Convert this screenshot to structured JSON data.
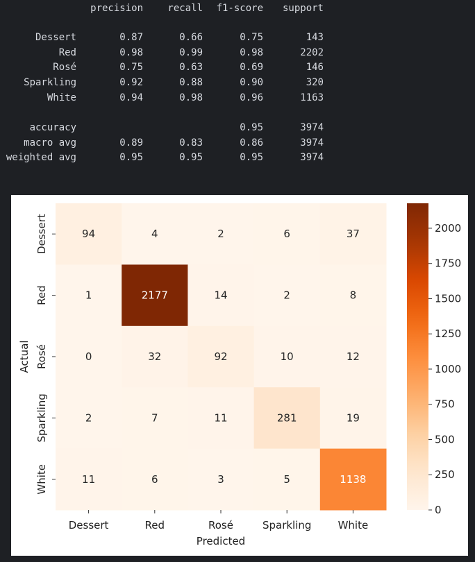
{
  "report": {
    "headers": [
      "precision",
      "recall",
      "f1-score",
      "support"
    ],
    "rows": [
      {
        "label": "Dessert",
        "precision": "0.87",
        "recall": "0.66",
        "f1": "0.75",
        "support": "143"
      },
      {
        "label": "Red",
        "precision": "0.98",
        "recall": "0.99",
        "f1": "0.98",
        "support": "2202"
      },
      {
        "label": "Rosé",
        "precision": "0.75",
        "recall": "0.63",
        "f1": "0.69",
        "support": "146"
      },
      {
        "label": "Sparkling",
        "precision": "0.92",
        "recall": "0.88",
        "f1": "0.90",
        "support": "320"
      },
      {
        "label": "White",
        "precision": "0.94",
        "recall": "0.98",
        "f1": "0.96",
        "support": "1163"
      }
    ],
    "summary": [
      {
        "label": "accuracy",
        "precision": "",
        "recall": "",
        "f1": "0.95",
        "support": "3974"
      },
      {
        "label": "macro avg",
        "precision": "0.89",
        "recall": "0.83",
        "f1": "0.86",
        "support": "3974"
      },
      {
        "label": "weighted avg",
        "precision": "0.95",
        "recall": "0.95",
        "f1": "0.95",
        "support": "3974"
      }
    ]
  },
  "chart_data": {
    "type": "heatmap",
    "x_categories": [
      "Dessert",
      "Red",
      "Rosé",
      "Sparkling",
      "White"
    ],
    "y_categories": [
      "Dessert",
      "Red",
      "Rosé",
      "Sparkling",
      "White"
    ],
    "values": [
      [
        94,
        4,
        2,
        6,
        37
      ],
      [
        1,
        2177,
        14,
        2,
        8
      ],
      [
        0,
        32,
        92,
        10,
        12
      ],
      [
        2,
        7,
        11,
        281,
        19
      ],
      [
        11,
        6,
        3,
        5,
        1138
      ]
    ],
    "xlabel": "Predicted",
    "ylabel": "Actual",
    "colormap": "Oranges",
    "vmin": 0,
    "vmax": 2177,
    "colorbar_ticks": [
      0,
      250,
      500,
      750,
      1000,
      1250,
      1500,
      1750,
      2000
    ],
    "colors": {
      "low": "#fff5eb",
      "high": "#7f2704"
    }
  }
}
